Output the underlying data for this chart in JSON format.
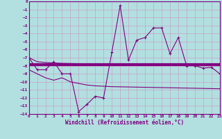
{
  "xlabel": "Windchill (Refroidissement éolien,°C)",
  "background_color": "#b2e0e0",
  "grid_color": "#c8a0c8",
  "line_color": "#800080",
  "hours": [
    0,
    1,
    2,
    3,
    4,
    5,
    6,
    7,
    8,
    9,
    10,
    11,
    12,
    13,
    14,
    15,
    16,
    17,
    18,
    19,
    20,
    21,
    22,
    23
  ],
  "windchill": [
    -7.0,
    -8.5,
    -8.5,
    -7.5,
    -9.0,
    -9.0,
    -13.7,
    -12.8,
    -11.8,
    -12.0,
    -6.3,
    -0.5,
    -7.3,
    -4.8,
    -4.5,
    -3.3,
    -3.3,
    -6.5,
    -4.5,
    -8.0,
    -8.0,
    -8.3,
    -8.2,
    -9.0
  ],
  "upper_band": [
    -7.0,
    -7.5,
    -7.6,
    -7.65,
    -7.7,
    -7.72,
    -7.74,
    -7.76,
    -7.78,
    -7.8,
    -7.82,
    -7.83,
    -7.84,
    -7.85,
    -7.86,
    -7.87,
    -7.88,
    -7.89,
    -7.9,
    -7.91,
    -7.92,
    -7.93,
    -7.94,
    -7.95
  ],
  "lower_band": [
    -8.5,
    -9.0,
    -9.5,
    -9.8,
    -9.5,
    -10.0,
    -10.2,
    -10.4,
    -10.5,
    -10.55,
    -10.6,
    -10.62,
    -10.64,
    -10.66,
    -10.68,
    -10.7,
    -10.72,
    -10.74,
    -10.76,
    -10.78,
    -10.8,
    -10.82,
    -10.84,
    -10.86
  ],
  "thick_line_y": -7.9,
  "ylim": [
    -14,
    0
  ],
  "xlim": [
    0,
    23
  ],
  "yticks": [
    0,
    -1,
    -2,
    -3,
    -4,
    -5,
    -6,
    -7,
    -8,
    -9,
    -10,
    -11,
    -12,
    -13,
    -14
  ],
  "xticks": [
    0,
    1,
    2,
    3,
    4,
    5,
    6,
    7,
    8,
    9,
    10,
    11,
    12,
    13,
    14,
    15,
    16,
    17,
    18,
    19,
    20,
    21,
    22,
    23
  ],
  "xtick_labels": [
    "0",
    "1",
    "2",
    "3",
    "4",
    "5",
    "6",
    "7",
    "8",
    "9",
    "10",
    "11",
    "12",
    "13",
    "14",
    "15",
    "16",
    "17",
    "18",
    "19",
    "20",
    "21",
    "22",
    "23"
  ]
}
